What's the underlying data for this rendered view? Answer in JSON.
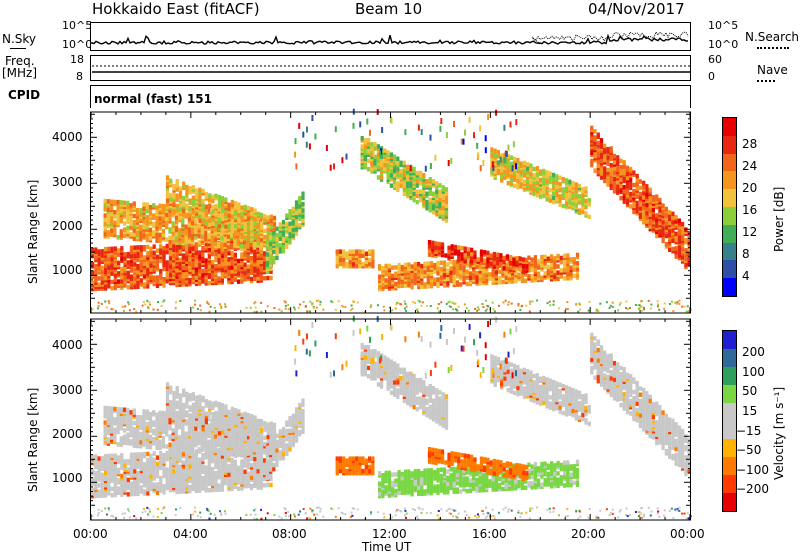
{
  "header": {
    "station": "Hokkaido East (fitACF)",
    "beam": "Beam 10",
    "date": "04/Nov/2017"
  },
  "side_labels": {
    "nsky": "N.Sky",
    "freq_top": "Freq.",
    "freq_unit": "[MHz]",
    "cpid": "CPID",
    "nsearch": "N.Search",
    "nave": "Nave"
  },
  "small_axes": {
    "nsky_left_ticks": [
      "10^5",
      "10^0"
    ],
    "nsky_right_ticks": [
      "10^5",
      "10^0"
    ],
    "freq_left_ticks": [
      "18",
      "8"
    ],
    "nave_right_ticks": [
      "60",
      "0"
    ]
  },
  "cpid_text": "normal (fast) 151",
  "colors": {
    "power_scale": [
      "#0000ff",
      "#2d4fa7",
      "#38818a",
      "#3fae54",
      "#8dcf3a",
      "#f2c23c",
      "#f3951e",
      "#f2661b",
      "#e9260f",
      "#e60000"
    ],
    "velocity_scale": [
      "#e60000",
      "#ff3b00",
      "#ff7b00",
      "#ffb300",
      "#c8c8c8",
      "#c8c8c8",
      "#79d743",
      "#2fa05c",
      "#2f6a9a",
      "#2020d0"
    ]
  },
  "chart_data": [
    {
      "type": "heatmap",
      "name": "power",
      "ylabel": "Slant Range [km]",
      "y_ticks": [
        1000,
        2000,
        3000,
        4000
      ],
      "ylim": [
        180,
        4550
      ],
      "xlim": [
        "00:00",
        "24:00"
      ],
      "colorbar_label": "Power [dB]",
      "colorbar_ticks": [
        "28",
        "24",
        "20",
        "16",
        "12",
        "8",
        "4"
      ]
    },
    {
      "type": "heatmap",
      "name": "velocity",
      "ylabel": "Slant Range [km]",
      "y_ticks": [
        1000,
        2000,
        3000,
        4000
      ],
      "ylim": [
        180,
        4550
      ],
      "xlim": [
        "00:00",
        "24:00"
      ],
      "colorbar_label": "Velocity [m s⁻¹]",
      "colorbar_ticks": [
        "200",
        "100",
        "50",
        "15",
        "−15",
        "−50",
        "−100",
        "−200"
      ]
    }
  ],
  "x_axis": {
    "label": "Time UT",
    "ticks": [
      "00:00",
      "04:00",
      "08:00",
      "12:00",
      "16:00",
      "20:00",
      "00:00"
    ]
  }
}
